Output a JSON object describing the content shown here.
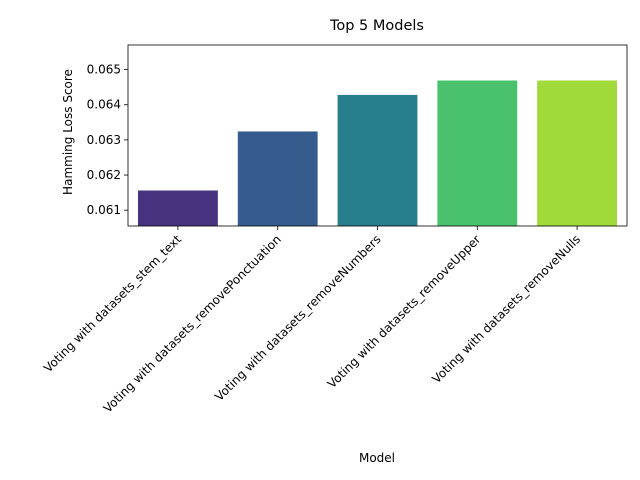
{
  "chart_data": {
    "type": "bar",
    "title": "Top 5 Models",
    "xlabel": "Model",
    "ylabel": "Hamming Loss Score",
    "categories": [
      "Voting with datasets_stem_text",
      "Voting with datasets_removePonctuation",
      "Voting with datasets_removeNumbers",
      "Voting with datasets_removeUpper",
      "Voting with datasets_removeNulls"
    ],
    "values": [
      0.06156,
      0.06324,
      0.06428,
      0.06469,
      0.06469
    ],
    "colors": [
      "#46327e",
      "#365c8d",
      "#277f8e",
      "#4ac16d",
      "#9fda3a"
    ],
    "ylim": [
      0.06055,
      0.0657
    ],
    "yticks": [
      "0.061",
      "0.062",
      "0.063",
      "0.064",
      "0.065"
    ],
    "ytick_values": [
      0.061,
      0.062,
      0.063,
      0.064,
      0.065
    ],
    "grid": false,
    "legend": "none"
  }
}
